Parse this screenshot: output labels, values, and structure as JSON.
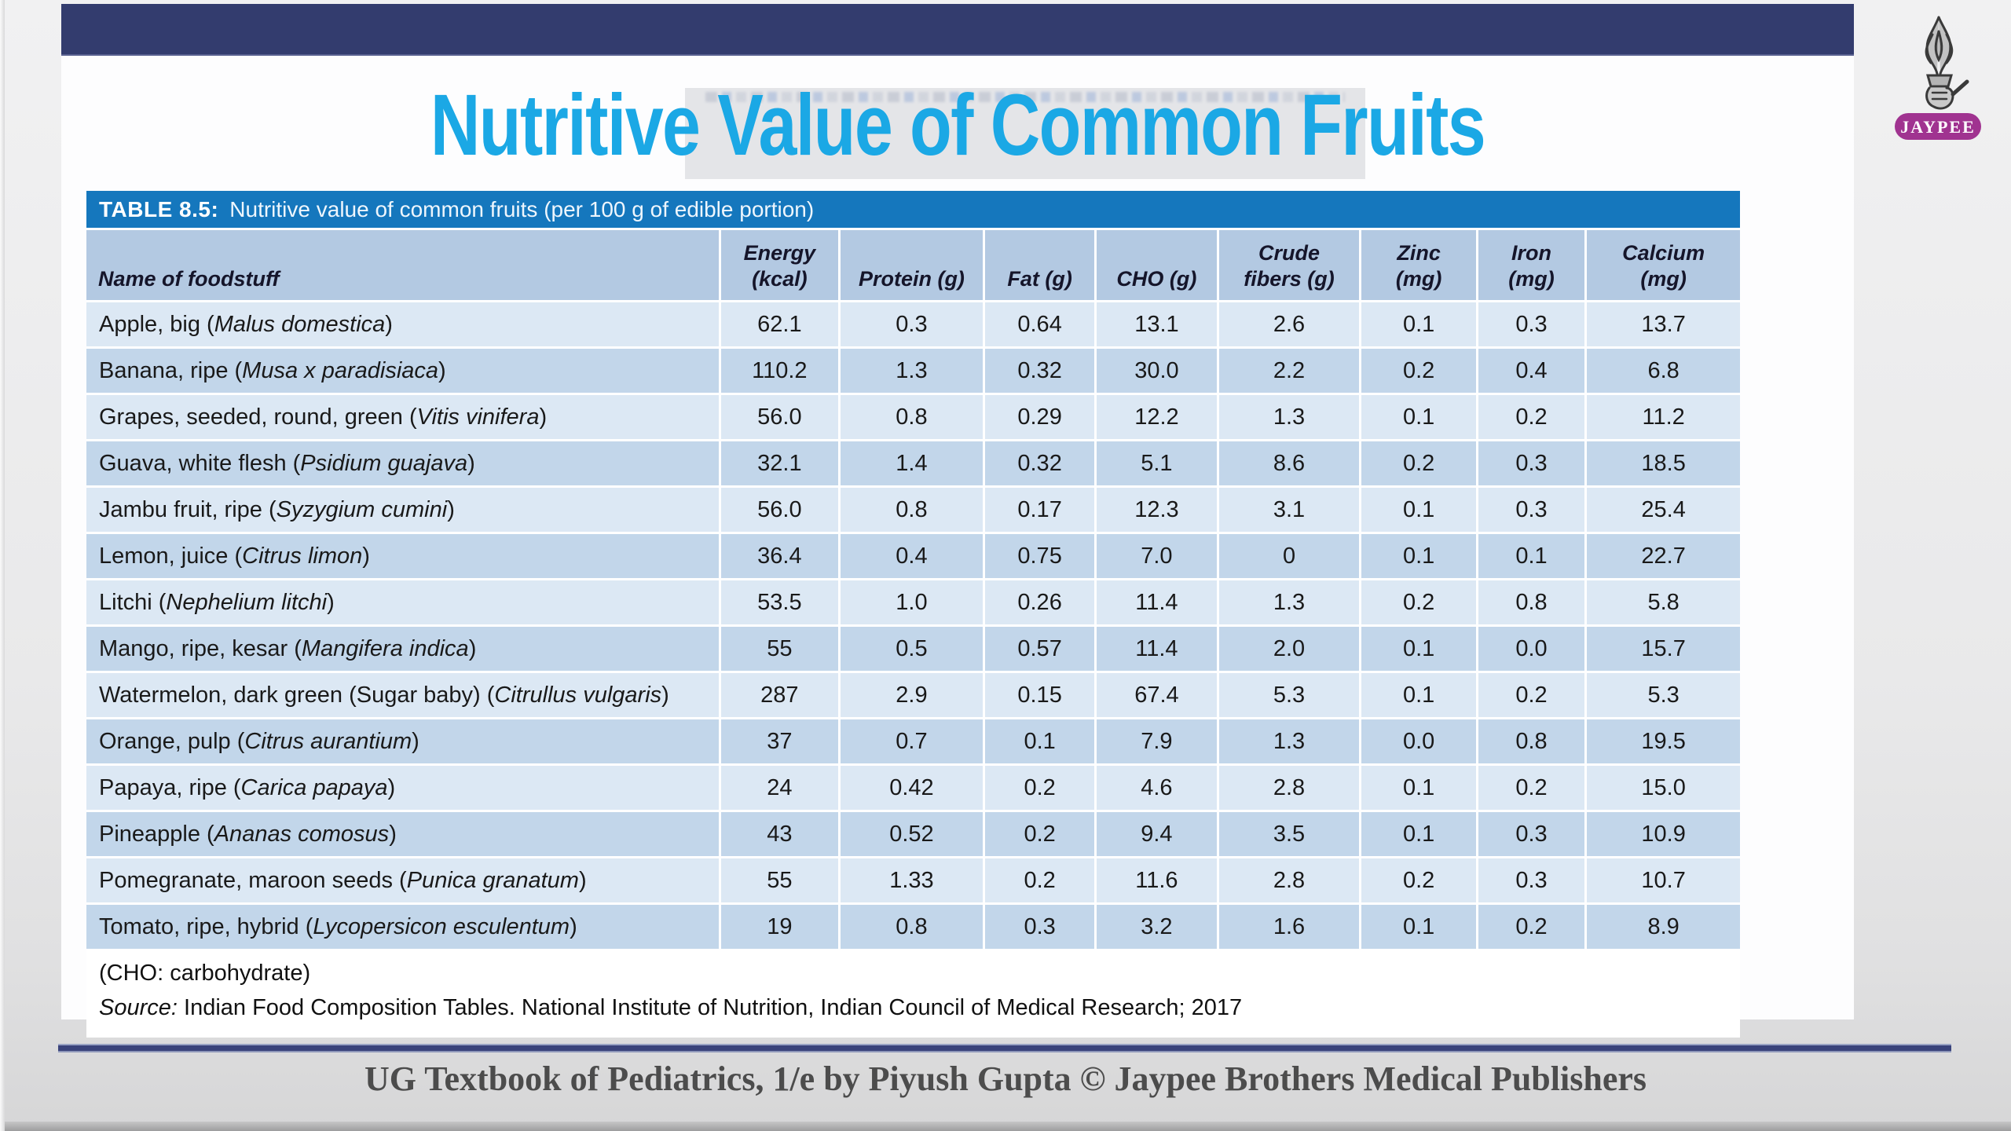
{
  "slide": {
    "title": "Nutritive Value of Common Fruits",
    "footer_credit": "UG Textbook of Pediatrics, 1/e by Piyush Gupta © Jaypee Brothers Medical Publishers"
  },
  "logo": {
    "badge_label": "JAYPEE",
    "badge_color": "#a03390"
  },
  "colors": {
    "top_bar": "#333c6e",
    "title_text": "#1ba8e5",
    "table_caption_bar": "#1577bd",
    "header_row": "#b3c9e2",
    "row_light": "#dce8f4",
    "row_dark": "#c2d6ea"
  },
  "table": {
    "caption_prefix": "TABLE 8.5:",
    "caption": "Nutritive value of common fruits (per 100 g of edible portion)",
    "columns": [
      {
        "lines": [
          "Name of foodstuff"
        ]
      },
      {
        "lines": [
          "Energy",
          "(kcal)"
        ]
      },
      {
        "lines": [
          "Protein (g)"
        ]
      },
      {
        "lines": [
          "Fat (g)"
        ]
      },
      {
        "lines": [
          "CHO (g)"
        ]
      },
      {
        "lines": [
          "Crude",
          "fibers (g)"
        ]
      },
      {
        "lines": [
          "Zinc",
          "(mg)"
        ]
      },
      {
        "lines": [
          "Iron",
          "(mg)"
        ]
      },
      {
        "lines": [
          "Calcium",
          "(mg)"
        ]
      }
    ],
    "rows": [
      {
        "common": "Apple, big",
        "species": "Malus domestica",
        "values": [
          "62.1",
          "0.3",
          "0.64",
          "13.1",
          "2.6",
          "0.1",
          "0.3",
          "13.7"
        ]
      },
      {
        "common": "Banana, ripe",
        "species": "Musa x paradisiaca",
        "values": [
          "110.2",
          "1.3",
          "0.32",
          "30.0",
          "2.2",
          "0.2",
          "0.4",
          "6.8"
        ]
      },
      {
        "common": "Grapes, seeded, round, green",
        "species": "Vitis vinifera",
        "values": [
          "56.0",
          "0.8",
          "0.29",
          "12.2",
          "1.3",
          "0.1",
          "0.2",
          "11.2"
        ]
      },
      {
        "common": "Guava, white flesh",
        "species": "Psidium guajava",
        "values": [
          "32.1",
          "1.4",
          "0.32",
          "5.1",
          "8.6",
          "0.2",
          "0.3",
          "18.5"
        ]
      },
      {
        "common": "Jambu fruit, ripe",
        "species": "Syzygium cumini",
        "values": [
          "56.0",
          "0.8",
          "0.17",
          "12.3",
          "3.1",
          "0.1",
          "0.3",
          "25.4"
        ]
      },
      {
        "common": "Lemon, juice",
        "species": "Citrus limon",
        "values": [
          "36.4",
          "0.4",
          "0.75",
          "7.0",
          "0",
          "0.1",
          "0.1",
          "22.7"
        ]
      },
      {
        "common": "Litchi",
        "species": "Nephelium litchi",
        "values": [
          "53.5",
          "1.0",
          "0.26",
          "11.4",
          "1.3",
          "0.2",
          "0.8",
          "5.8"
        ]
      },
      {
        "common": "Mango, ripe, kesar",
        "species": "Mangifera indica",
        "values": [
          "55",
          "0.5",
          "0.57",
          "11.4",
          "2.0",
          "0.1",
          "0.0",
          "15.7"
        ]
      },
      {
        "common": "Watermelon, dark green (Sugar baby)",
        "species": "Citrullus vulgaris",
        "values": [
          "287",
          "2.9",
          "0.15",
          "67.4",
          "5.3",
          "0.1",
          "0.2",
          "5.3"
        ]
      },
      {
        "common": "Orange, pulp",
        "species": "Citrus aurantium",
        "values": [
          "37",
          "0.7",
          "0.1",
          "7.9",
          "1.3",
          "0.0",
          "0.8",
          "19.5"
        ]
      },
      {
        "common": "Papaya, ripe",
        "species": "Carica papaya",
        "values": [
          "24",
          "0.42",
          "0.2",
          "4.6",
          "2.8",
          "0.1",
          "0.2",
          "15.0"
        ]
      },
      {
        "common": "Pineapple",
        "species": "Ananas comosus",
        "values": [
          "43",
          "0.52",
          "0.2",
          "9.4",
          "3.5",
          "0.1",
          "0.3",
          "10.9"
        ]
      },
      {
        "common": "Pomegranate, maroon seeds",
        "species": "Punica granatum",
        "values": [
          "55",
          "1.33",
          "0.2",
          "11.6",
          "2.8",
          "0.2",
          "0.3",
          "10.7"
        ]
      },
      {
        "common": "Tomato, ripe, hybrid",
        "species": "Lycopersicon esculentum",
        "values": [
          "19",
          "0.8",
          "0.3",
          "3.2",
          "1.6",
          "0.1",
          "0.2",
          "8.9"
        ]
      }
    ],
    "notes": [
      "(CHO: carbohydrate)"
    ],
    "source_label": "Source:",
    "source_text": " Indian Food Composition Tables. National Institute of Nutrition, Indian Council of Medical Research; 2017"
  }
}
